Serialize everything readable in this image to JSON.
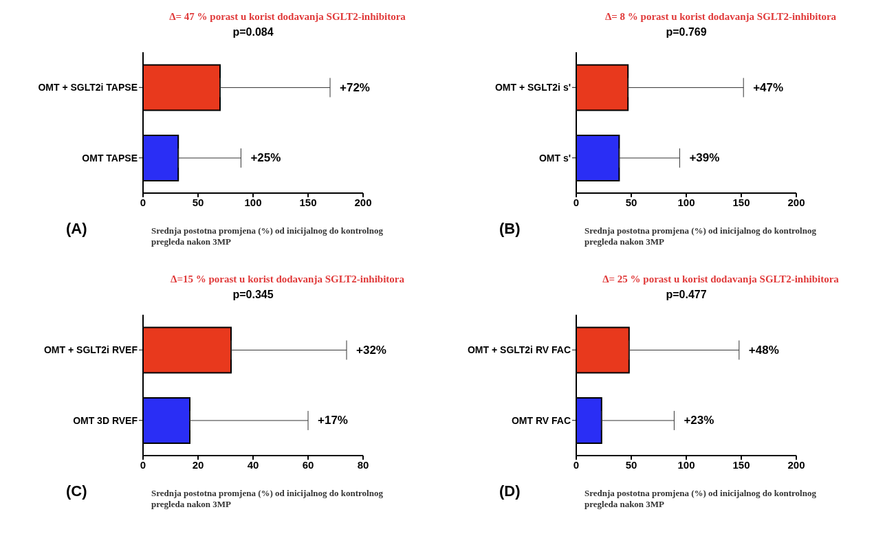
{
  "chart_data": [
    {
      "type": "bar",
      "orientation": "horizontal",
      "title": "Δ= 47 % porast u korist dodavanja SGLT2-inhibitora",
      "subtitle": "p=0.084",
      "xlabel": "Srednja postotna promjena (%) od inicijalnog do kontrolnog pregleda nakon 3MP",
      "annotations": [
        "(A)",
        {
          "text": "+72%",
          "x": 170,
          "y": "OMT + SGLT2i TAPSE"
        },
        {
          "text": "+25%",
          "x": 89,
          "y": "OMT TAPSE"
        }
      ],
      "categories": [
        "OMT + SGLT2i TAPSE",
        "OMT TAPSE"
      ],
      "values": [
        70,
        32
      ],
      "colors": [
        "#e8391d",
        "#2a2ef5"
      ],
      "errors": [
        [
          70,
          170
        ],
        [
          32,
          89
        ]
      ],
      "xlim": [
        0,
        200
      ],
      "xticks": [
        0,
        50,
        100,
        150,
        200
      ],
      "grid": false,
      "legend": false
    },
    {
      "type": "bar",
      "orientation": "horizontal",
      "title": "Δ= 8 % porast u korist dodavanja SGLT2-inhibitora",
      "subtitle": "p=0.769",
      "xlabel": "Srednja postotna promjena (%) od inicijalnog do kontrolnog pregleda nakon 3MP",
      "annotations": [
        "(B)",
        {
          "text": "+47%",
          "x": 152,
          "y": "OMT + SGLT2i s'"
        },
        {
          "text": "+39%",
          "x": 94,
          "y": "OMT s'"
        }
      ],
      "categories": [
        "OMT + SGLT2i s'",
        "OMT s'"
      ],
      "values": [
        47,
        39
      ],
      "colors": [
        "#e8391d",
        "#2a2ef5"
      ],
      "errors": [
        [
          47,
          152
        ],
        [
          39,
          94
        ]
      ],
      "xlim": [
        0,
        200
      ],
      "xticks": [
        0,
        50,
        100,
        150,
        200
      ],
      "grid": false,
      "legend": false
    },
    {
      "type": "bar",
      "orientation": "horizontal",
      "title": "Δ=15 % porast u korist dodavanja SGLT2-inhibitora",
      "subtitle": "p=0.345",
      "xlabel": "Srednja postotna promjena (%) od inicijalnog do kontrolnog pregleda nakon 3MP",
      "annotations": [
        "(C)",
        {
          "text": "+32%",
          "x": 74,
          "y": "OMT + SGLT2i RVEF"
        },
        {
          "text": "+17%",
          "x": 60,
          "y": "OMT 3D RVEF"
        }
      ],
      "categories": [
        "OMT + SGLT2i RVEF",
        "OMT 3D RVEF"
      ],
      "values": [
        32,
        17
      ],
      "colors": [
        "#e8391d",
        "#2a2ef5"
      ],
      "errors": [
        [
          32,
          74
        ],
        [
          17,
          60
        ]
      ],
      "xlim": [
        0,
        80
      ],
      "xticks": [
        0,
        20,
        40,
        60,
        80
      ],
      "grid": false,
      "legend": false
    },
    {
      "type": "bar",
      "orientation": "horizontal",
      "title": "Δ= 25 % porast u korist dodavanja SGLT2-inhibitora",
      "subtitle": "p=0.477",
      "xlabel": "Srednja postotna promjena (%) od inicijalnog do kontrolnog pregleda nakon 3MP",
      "annotations": [
        "(D)",
        {
          "text": "+48%",
          "x": 148,
          "y": "OMT + SGLT2i RV FAC"
        },
        {
          "text": "+23%",
          "x": 89,
          "y": "OMT RV FAC"
        }
      ],
      "categories": [
        "OMT + SGLT2i RV FAC",
        "OMT RV FAC"
      ],
      "values": [
        48,
        23
      ],
      "colors": [
        "#e8391d",
        "#2a2ef5"
      ],
      "errors": [
        [
          48,
          148
        ],
        [
          23,
          89
        ]
      ],
      "xlim": [
        0,
        200
      ],
      "xticks": [
        0,
        50,
        100,
        150,
        200
      ],
      "grid": false,
      "legend": false
    }
  ]
}
